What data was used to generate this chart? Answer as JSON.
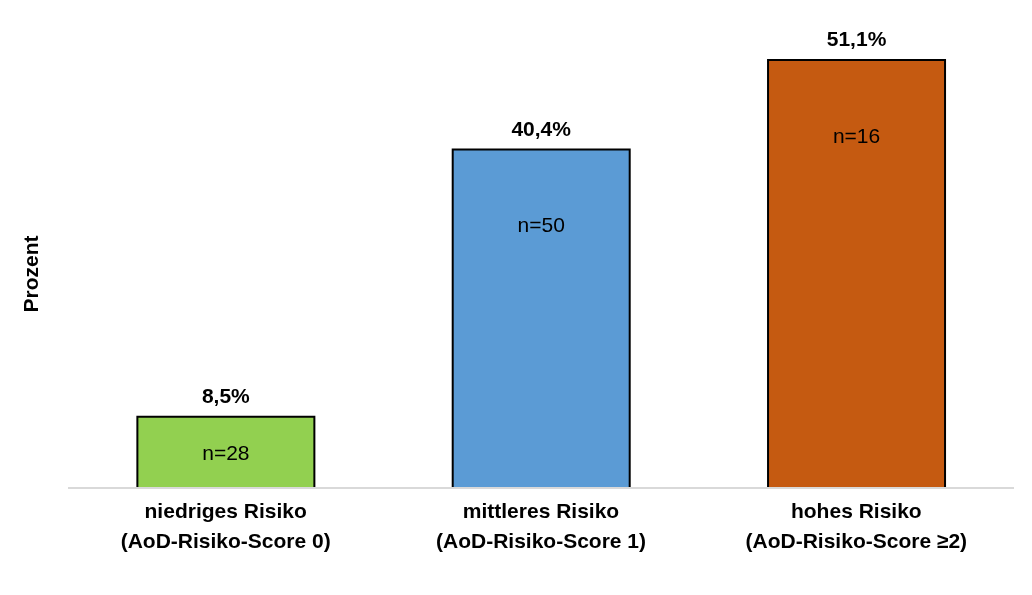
{
  "chart_data": {
    "type": "bar",
    "ylabel": "Prozent",
    "relative": false,
    "categories": [
      "niedriges Risiko\n(AoD-Risiko-Score 0)",
      "mittleres Risiko\n(AoD-Risiko-Score 1)",
      "hohes Risiko\n(AoD-Risiko-Score ≥2)"
    ],
    "values": [
      8.5,
      40.4,
      51.1
    ],
    "colors": [
      "#92d050",
      "#5b9bd5",
      "#c55a11"
    ],
    "value_labels": [
      "8,5%",
      "40,4%",
      "51,1%"
    ],
    "annotations": [
      "n=28",
      "n=50",
      "n=16"
    ]
  }
}
